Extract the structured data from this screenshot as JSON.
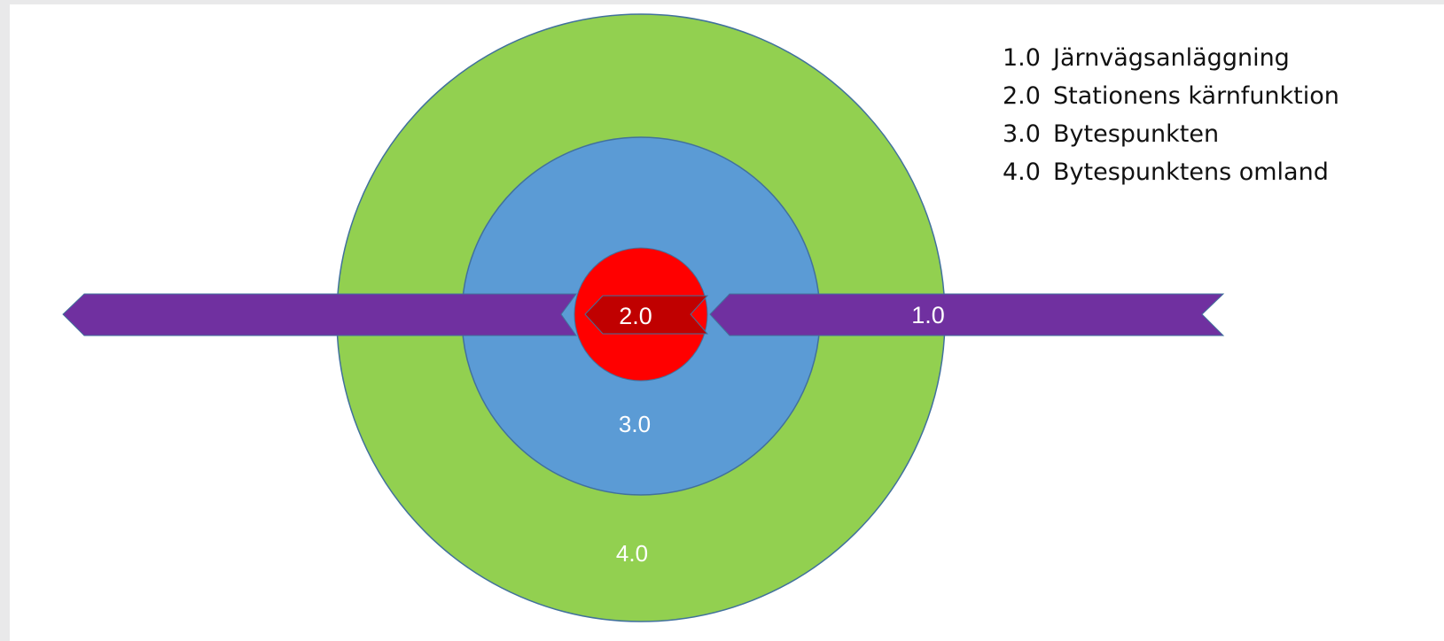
{
  "diagram": {
    "zones": [
      {
        "code": "4.0",
        "label": "Bytespunktens omland",
        "color": "#92d050"
      },
      {
        "code": "3.0",
        "label": "Bytespunkten",
        "color": "#5b9bd5"
      },
      {
        "code": "2.0",
        "label": "Stationens kärnfunktion",
        "color": "#ff0000"
      },
      {
        "code": "1.0",
        "label": "Järnvägsanläggning",
        "color": "#7030a0"
      }
    ],
    "core_band_color": "#c00000",
    "label_color": "#ffffff",
    "border_color": "#41719c"
  },
  "legend": {
    "items": [
      {
        "code": "1.0",
        "text": "Järnvägsanläggning"
      },
      {
        "code": "2.0",
        "text": "Stationens kärnfunktion"
      },
      {
        "code": "3.0",
        "text": "Bytespunkten"
      },
      {
        "code": "4.0",
        "text": "Bytespunktens omland"
      }
    ]
  }
}
